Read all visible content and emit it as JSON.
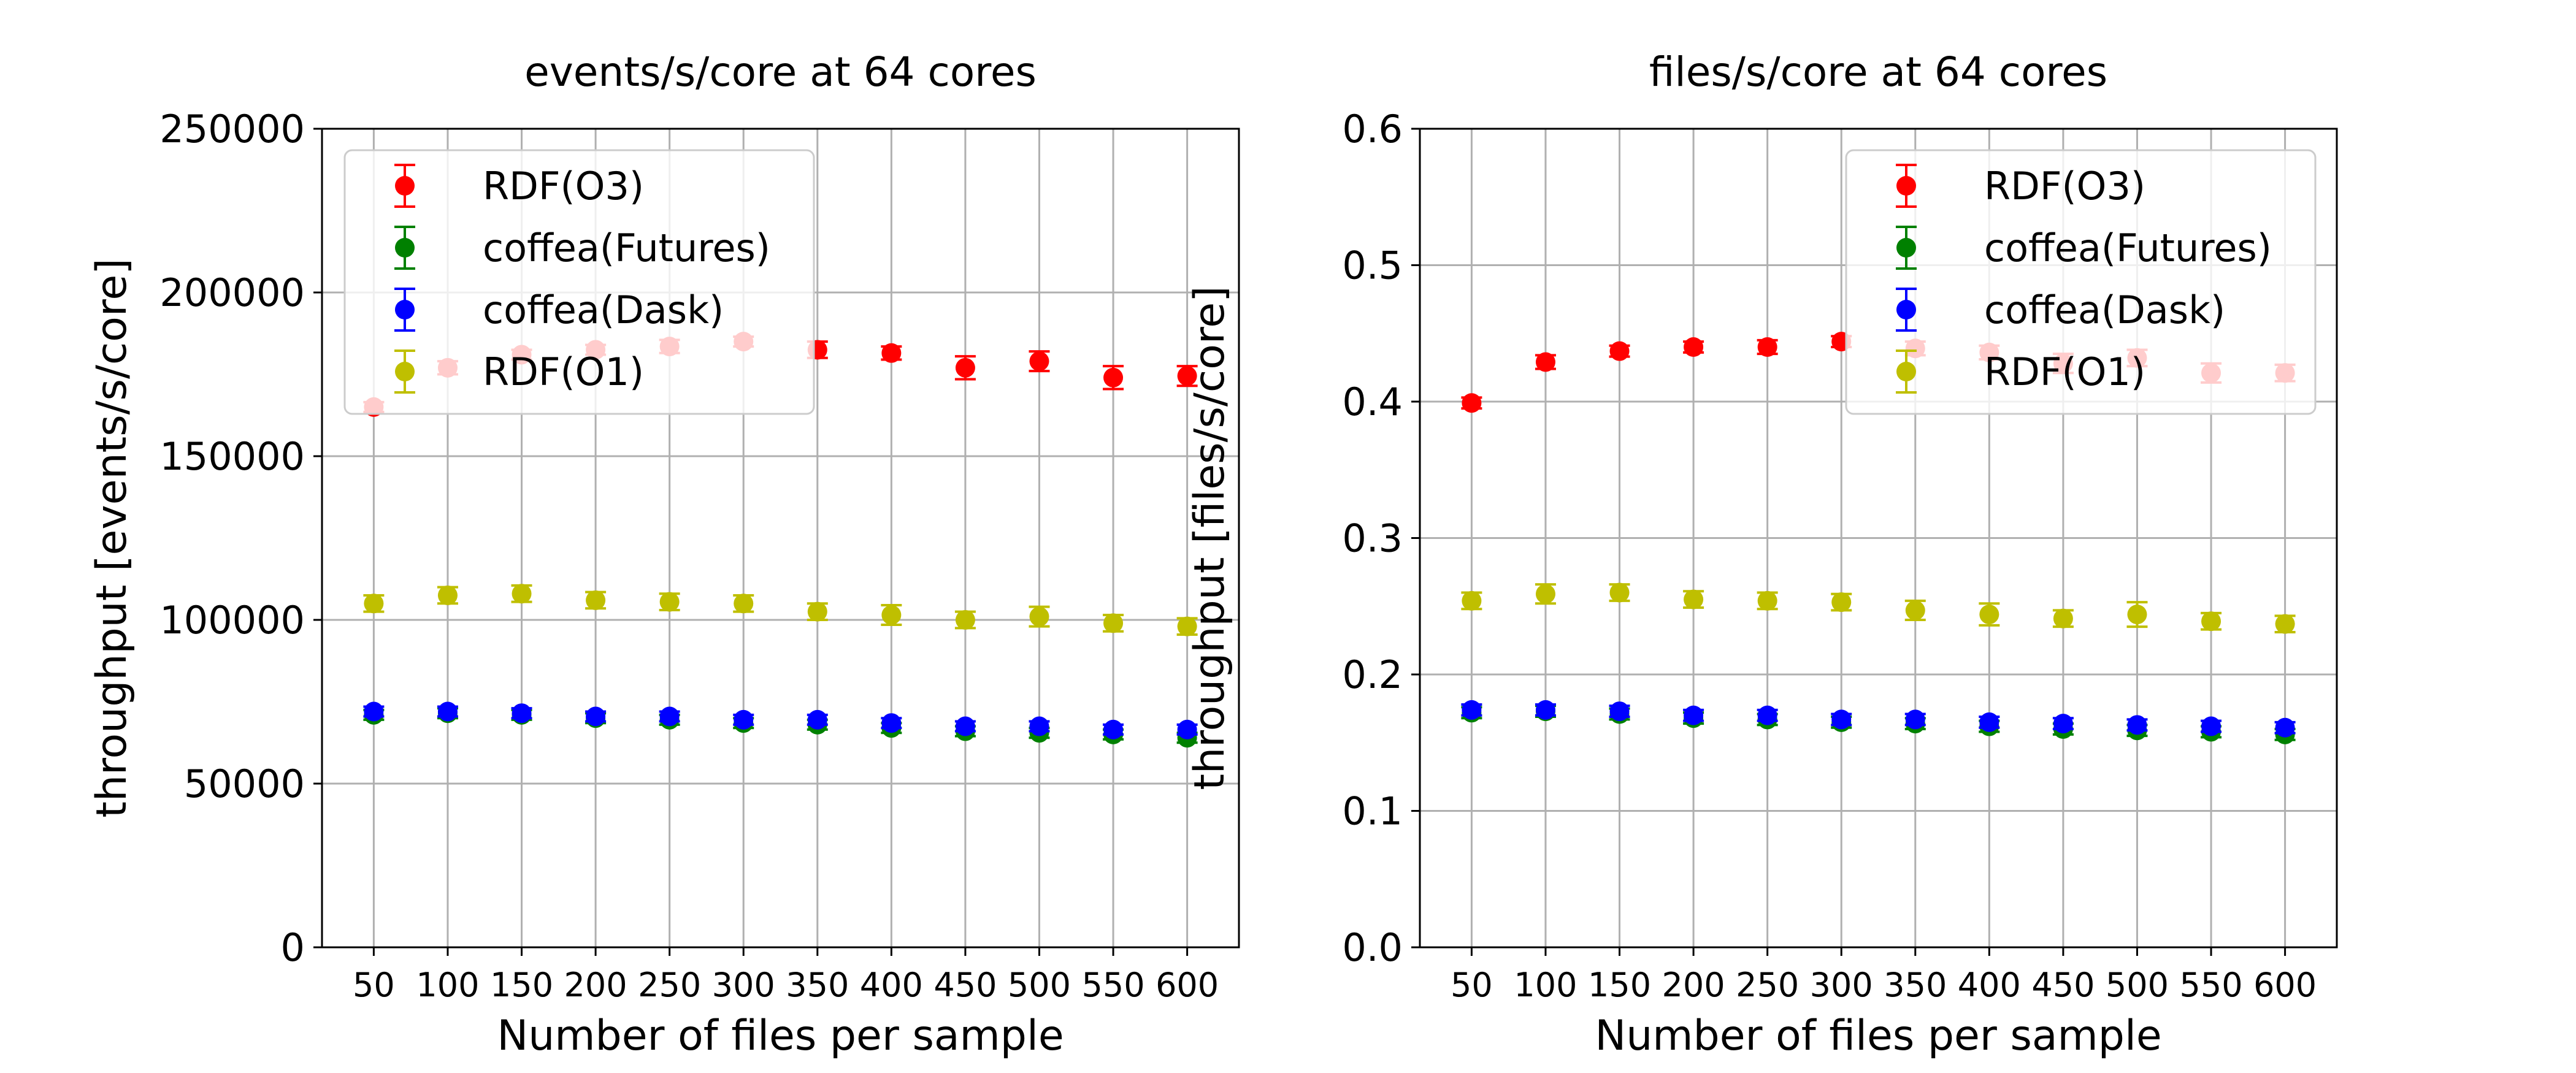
{
  "chart_data": [
    {
      "type": "scatter",
      "title": "events/s/core at 64 cores",
      "xlabel": "Number of files per sample",
      "ylabel": "throughput [events/s/core]",
      "categories": [
        "50",
        "100",
        "150",
        "200",
        "250",
        "300",
        "350",
        "400",
        "450",
        "500",
        "550",
        "600"
      ],
      "ylim": [
        0,
        250000
      ],
      "yticks": [
        "0",
        "50000",
        "100000",
        "150000",
        "200000",
        "250000"
      ],
      "ytick_values": [
        0,
        50000,
        100000,
        150000,
        200000,
        250000
      ],
      "grid": true,
      "legend_position": "upper-left",
      "series": [
        {
          "name": "RDF(O3)",
          "color": "#ff0000",
          "values": [
            165000,
            177000,
            181000,
            182500,
            183500,
            185000,
            182500,
            181500,
            177000,
            179000,
            174000,
            174500
          ],
          "errors": [
            1500,
            2000,
            1500,
            1500,
            2000,
            1500,
            2500,
            2000,
            3500,
            3000,
            3500,
            3000
          ]
        },
        {
          "name": "coffea(Futures)",
          "color": "#008000",
          "values": [
            71000,
            71500,
            71000,
            70000,
            69500,
            68500,
            68000,
            67000,
            66000,
            65500,
            65000,
            64000
          ],
          "errors": [
            1500,
            1500,
            1500,
            1500,
            1500,
            1500,
            1500,
            1500,
            1500,
            1500,
            1500,
            1500
          ]
        },
        {
          "name": "coffea(Dask)",
          "color": "#0000ff",
          "values": [
            72000,
            72000,
            71500,
            70500,
            70500,
            69500,
            69500,
            68500,
            67500,
            67500,
            66500,
            66500
          ],
          "errors": [
            1500,
            1500,
            1500,
            1500,
            1500,
            1500,
            1500,
            1500,
            1500,
            1500,
            1500,
            1500
          ]
        },
        {
          "name": "RDF(O1)",
          "color": "#bfbf00",
          "values": [
            105000,
            107500,
            108000,
            106000,
            105500,
            105000,
            102500,
            101500,
            100000,
            101000,
            99000,
            98000
          ],
          "errors": [
            2500,
            2500,
            2500,
            2500,
            2500,
            2500,
            2500,
            3000,
            2500,
            3000,
            2500,
            2500
          ]
        }
      ]
    },
    {
      "type": "scatter",
      "title": "files/s/core at 64 cores",
      "xlabel": "Number of files per sample",
      "ylabel": "throughput [files/s/core]",
      "categories": [
        "50",
        "100",
        "150",
        "200",
        "250",
        "300",
        "350",
        "400",
        "450",
        "500",
        "550",
        "600"
      ],
      "ylim": [
        0,
        0.6
      ],
      "yticks": [
        "0.0",
        "0.1",
        "0.2",
        "0.3",
        "0.4",
        "0.5",
        "0.6"
      ],
      "ytick_values": [
        0,
        0.1,
        0.2,
        0.3,
        0.4,
        0.5,
        0.6
      ],
      "grid": true,
      "legend_position": "upper-right",
      "series": [
        {
          "name": "RDF(O3)",
          "color": "#ff0000",
          "values": [
            0.399,
            0.429,
            0.437,
            0.44,
            0.44,
            0.444,
            0.439,
            0.436,
            0.428,
            0.432,
            0.421,
            0.421
          ],
          "errors": [
            0.004,
            0.005,
            0.004,
            0.004,
            0.005,
            0.004,
            0.005,
            0.005,
            0.007,
            0.006,
            0.007,
            0.006
          ]
        },
        {
          "name": "coffea(Futures)",
          "color": "#008000",
          "values": [
            0.172,
            0.173,
            0.171,
            0.168,
            0.167,
            0.165,
            0.164,
            0.162,
            0.16,
            0.159,
            0.158,
            0.156
          ],
          "errors": [
            0.004,
            0.004,
            0.004,
            0.004,
            0.004,
            0.004,
            0.004,
            0.004,
            0.004,
            0.004,
            0.004,
            0.004
          ]
        },
        {
          "name": "coffea(Dask)",
          "color": "#0000ff",
          "values": [
            0.174,
            0.174,
            0.173,
            0.17,
            0.17,
            0.167,
            0.167,
            0.165,
            0.164,
            0.163,
            0.162,
            0.161
          ],
          "errors": [
            0.004,
            0.004,
            0.004,
            0.004,
            0.004,
            0.004,
            0.004,
            0.004,
            0.004,
            0.004,
            0.004,
            0.004
          ]
        },
        {
          "name": "RDF(O1)",
          "color": "#bfbf00",
          "values": [
            0.254,
            0.259,
            0.26,
            0.255,
            0.254,
            0.253,
            0.247,
            0.244,
            0.241,
            0.244,
            0.239,
            0.237
          ],
          "errors": [
            0.006,
            0.007,
            0.006,
            0.006,
            0.006,
            0.006,
            0.007,
            0.008,
            0.006,
            0.009,
            0.006,
            0.006
          ]
        }
      ]
    }
  ]
}
